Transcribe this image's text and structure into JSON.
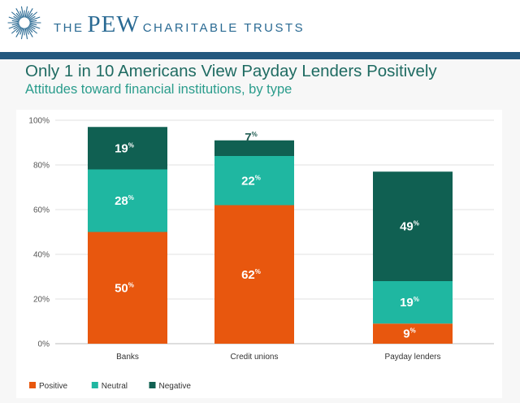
{
  "header": {
    "brand_the": "THE",
    "brand_pew": "PEW",
    "brand_ct": "CHARITABLE TRUSTS",
    "logo_icon": "starburst-logo-icon"
  },
  "colors": {
    "header_rule": "#24587e",
    "title": "#1f6b62",
    "subtitle": "#2a9c8c",
    "positive": "#e8570e",
    "neutral": "#1fb7a1",
    "negative": "#106052"
  },
  "chart_data": {
    "type": "bar",
    "stacked": true,
    "title": "Only 1 in 10 Americans View Payday Lenders Positively",
    "subtitle": "Attitudes toward financial institutions, by type",
    "categories": [
      "Banks",
      "Credit unions",
      "Payday lenders"
    ],
    "series": [
      {
        "name": "Positive",
        "color": "#e8570e",
        "values": [
          50,
          62,
          9
        ]
      },
      {
        "name": "Neutral",
        "color": "#1fb7a1",
        "values": [
          28,
          22,
          19
        ]
      },
      {
        "name": "Negative",
        "color": "#106052",
        "values": [
          19,
          7,
          49
        ]
      }
    ],
    "value_suffix": "%",
    "ylim": [
      0,
      100
    ],
    "yticks": [
      "0%",
      "20%",
      "40%",
      "60%",
      "80%",
      "100%"
    ],
    "ytick_values": [
      0,
      20,
      40,
      60,
      80,
      100
    ],
    "grid": true,
    "legend_position": "bottom-left",
    "xlabel": "",
    "ylabel": ""
  }
}
